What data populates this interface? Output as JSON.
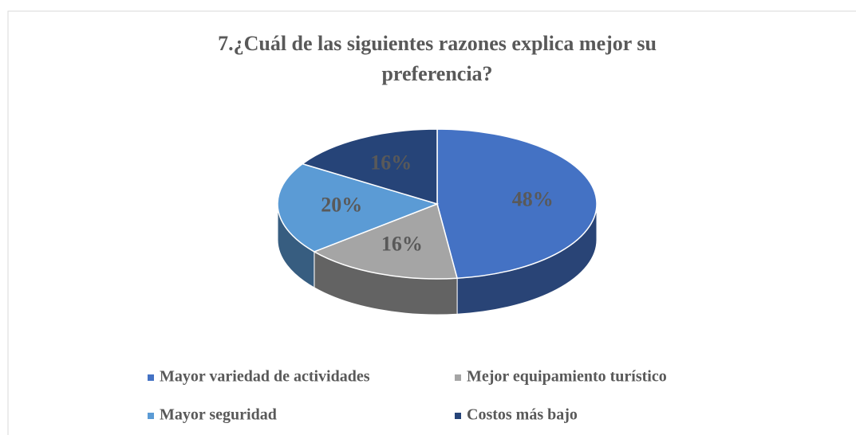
{
  "chart_data": {
    "type": "pie",
    "title": "7.¿Cuál de las siguientes razones explica mejor su preferencia?",
    "categories": [
      "Mayor variedad de actividades",
      "Mejor equipamiento turístico",
      "Mayor seguridad",
      "Costos más bajo"
    ],
    "values": [
      48,
      16,
      20,
      16
    ],
    "value_labels": [
      "48%",
      "16%",
      "20%",
      "16%"
    ],
    "colors": [
      "#4472c4",
      "#a5a5a5",
      "#5b9bd5",
      "#264478"
    ],
    "legend": "bottom"
  }
}
